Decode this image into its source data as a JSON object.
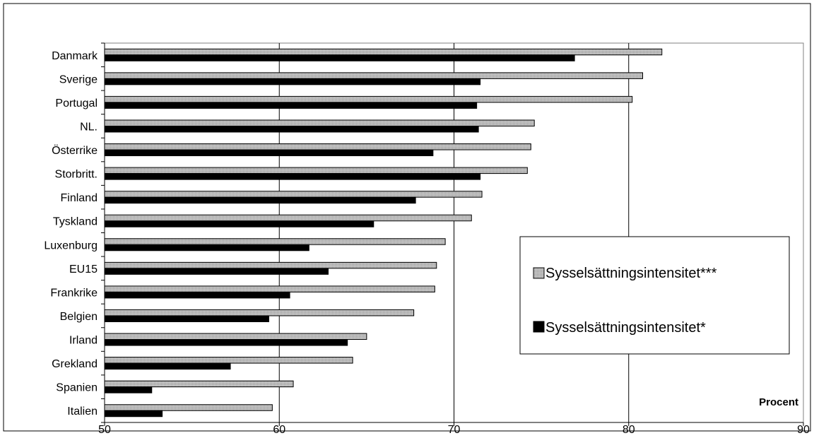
{
  "chart_data": {
    "type": "bar",
    "orientation": "horizontal",
    "categories": [
      "Danmark",
      "Sverige",
      "Portugal",
      "NL.",
      "Österrike",
      "Storbritt.",
      "Finland",
      "Tyskland",
      "Luxenburg",
      "EU15",
      "Frankrike",
      "Belgien",
      "Irland",
      "Grekland",
      "Spanien",
      "Italien"
    ],
    "series": [
      {
        "name": "Sysselsättningsintensitet***",
        "color": "#c0c0c0",
        "pattern": "dotted-gray",
        "values": [
          81.9,
          80.8,
          80.2,
          74.6,
          74.4,
          74.2,
          71.6,
          71.0,
          69.5,
          69.0,
          68.9,
          67.7,
          65.0,
          64.2,
          60.8,
          59.6
        ]
      },
      {
        "name": "Sysselsättningsintensitet*",
        "color": "#000000",
        "pattern": "solid-black",
        "values": [
          76.9,
          71.5,
          71.3,
          71.4,
          68.8,
          71.5,
          67.8,
          65.4,
          61.7,
          62.8,
          60.6,
          59.4,
          63.9,
          57.2,
          52.7,
          53.3
        ]
      }
    ],
    "xlim": [
      50,
      90
    ],
    "xticks": [
      "50",
      "60",
      "70",
      "80",
      "90"
    ],
    "unit_label": "Procent",
    "grid": "vertical",
    "legend_position": "right"
  }
}
